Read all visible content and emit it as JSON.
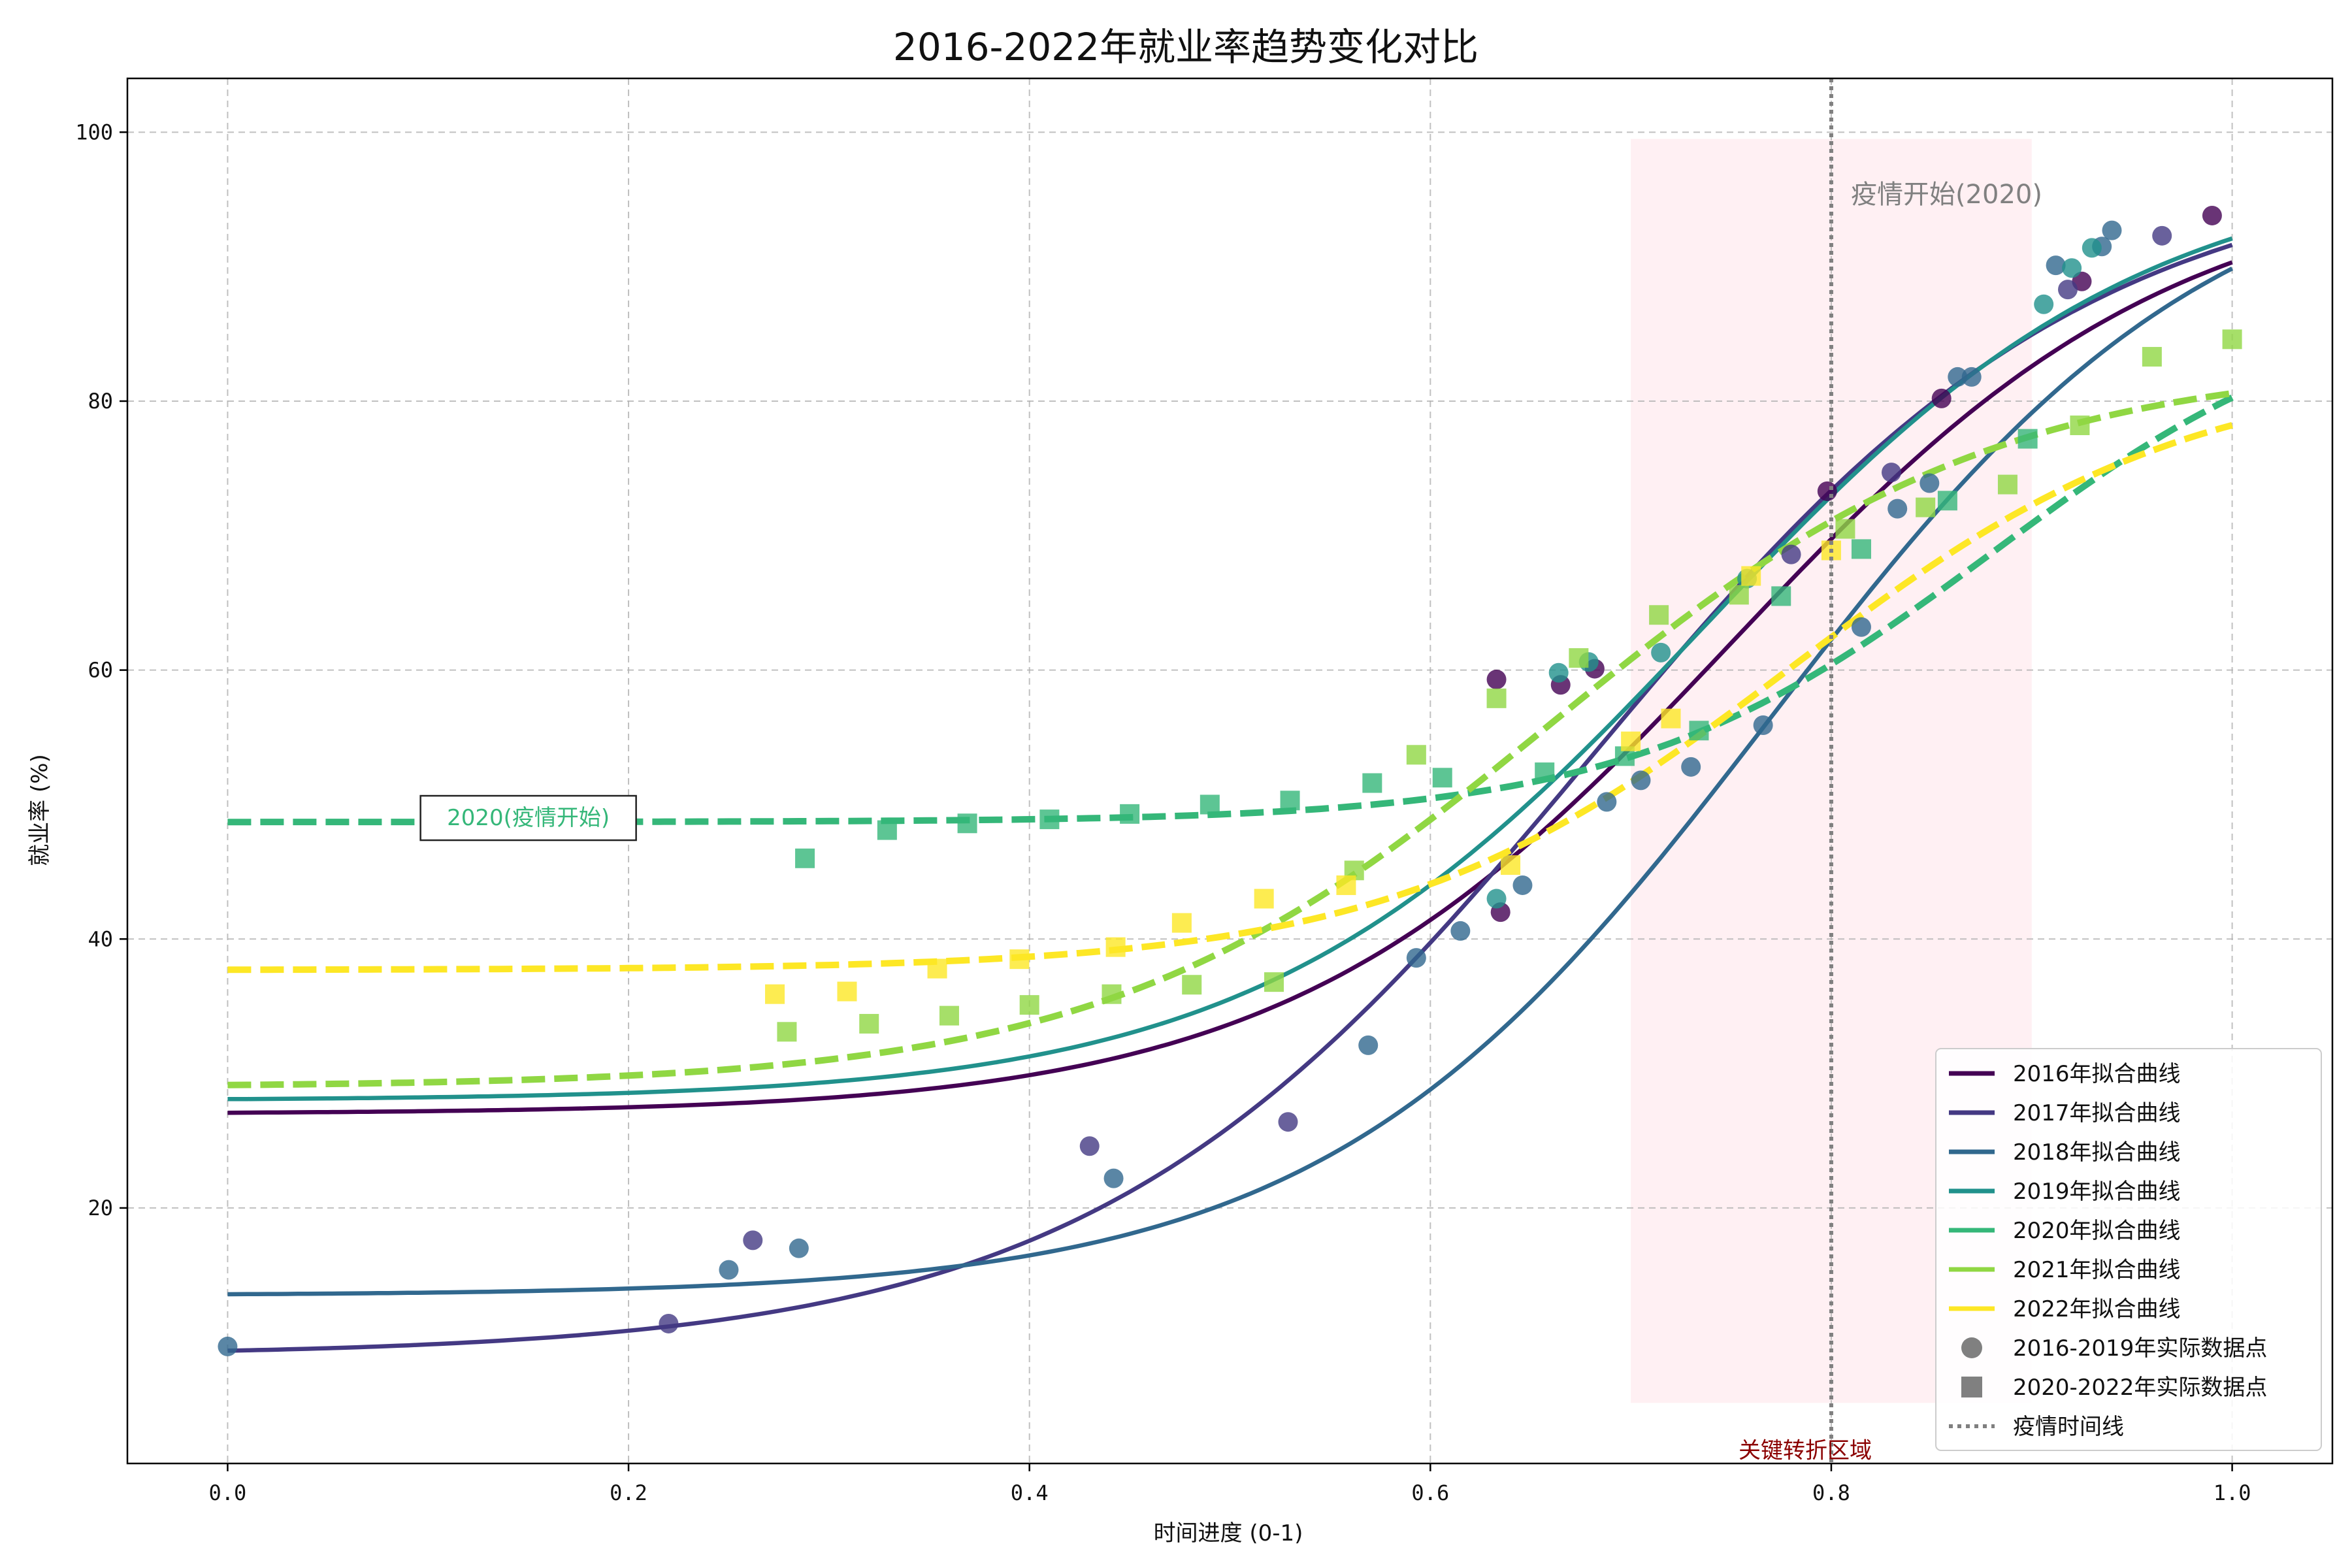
{
  "chart_data": {
    "type": "line",
    "title": "2016-2022年就业率趋势变化对比",
    "xlabel": "时间进度 (0-1)",
    "ylabel": "就业率 (%)",
    "xlim": [
      -0.05,
      1.05
    ],
    "ylim": [
      1,
      104
    ],
    "x_ticks": [
      0.0,
      0.2,
      0.4,
      0.6,
      0.8,
      1.0
    ],
    "x_tick_labels": [
      "0.0",
      "0.2",
      "0.4",
      "0.6",
      "0.8",
      "1.0"
    ],
    "y_ticks": [
      20,
      40,
      60,
      80,
      100
    ],
    "y_tick_labels": [
      "20",
      "40",
      "60",
      "80",
      "100"
    ],
    "grid": true,
    "legend_position": "bottom-right",
    "colors": {
      "2016": "#440154",
      "2017": "#443983",
      "2018": "#31688e",
      "2019": "#21918c",
      "2020": "#35b779",
      "2021": "#90d743",
      "2022": "#fde725",
      "vline": "#808080",
      "highlight": "#ffb6c1",
      "highlight_label": "#8b0000"
    },
    "fit_curves": [
      {
        "name": "2016年拟合曲线",
        "year": "2016",
        "dashed": false,
        "base": 27.0,
        "amp": 70.0,
        "k": 9.0,
        "x0": 0.75
      },
      {
        "name": "2017年拟合曲线",
        "year": "2017",
        "dashed": false,
        "base": 9.0,
        "amp": 89.0,
        "k": 8.0,
        "x0": 0.68
      },
      {
        "name": "2018年拟合曲线",
        "year": "2018",
        "dashed": false,
        "base": 13.5,
        "amp": 86.0,
        "k": 9.0,
        "x0": 0.77
      },
      {
        "name": "2019年拟合曲线",
        "year": "2019",
        "dashed": false,
        "base": 28.0,
        "amp": 70.0,
        "k": 9.0,
        "x0": 0.735
      },
      {
        "name": "2020年拟合曲线",
        "year": "2020",
        "dashed": true,
        "base": 48.7,
        "amp": 40.0,
        "k": 11.0,
        "x0": 0.88
      },
      {
        "name": "2021年拟合曲线",
        "year": "2021",
        "dashed": true,
        "base": 29.0,
        "amp": 54.0,
        "k": 9.0,
        "x0": 0.66
      },
      {
        "name": "2022年拟合曲线",
        "year": "2022",
        "dashed": true,
        "base": 37.7,
        "amp": 45.0,
        "k": 10.0,
        "x0": 0.78
      }
    ],
    "points_2016_2019": [
      {
        "year": "2016",
        "x": 0.633,
        "y": 59.3
      },
      {
        "year": "2016",
        "x": 0.665,
        "y": 58.9
      },
      {
        "year": "2016",
        "x": 0.682,
        "y": 60.1
      },
      {
        "year": "2016",
        "x": 0.635,
        "y": 42.0
      },
      {
        "year": "2016",
        "x": 0.798,
        "y": 73.3
      },
      {
        "year": "2016",
        "x": 0.855,
        "y": 80.2
      },
      {
        "year": "2016",
        "x": 0.925,
        "y": 88.9
      },
      {
        "year": "2016",
        "x": 0.99,
        "y": 93.8
      },
      {
        "year": "2017",
        "x": 0.22,
        "y": 11.4
      },
      {
        "year": "2017",
        "x": 0.262,
        "y": 17.6
      },
      {
        "year": "2017",
        "x": 0.43,
        "y": 24.6
      },
      {
        "year": "2017",
        "x": 0.529,
        "y": 26.4
      },
      {
        "year": "2017",
        "x": 0.78,
        "y": 68.6
      },
      {
        "year": "2017",
        "x": 0.83,
        "y": 74.7
      },
      {
        "year": "2017",
        "x": 0.918,
        "y": 88.3
      },
      {
        "year": "2017",
        "x": 0.965,
        "y": 92.3
      },
      {
        "year": "2018",
        "x": 0.0,
        "y": 9.7
      },
      {
        "year": "2018",
        "x": 0.25,
        "y": 15.4
      },
      {
        "year": "2018",
        "x": 0.285,
        "y": 17.0
      },
      {
        "year": "2018",
        "x": 0.442,
        "y": 22.2
      },
      {
        "year": "2018",
        "x": 0.569,
        "y": 32.1
      },
      {
        "year": "2018",
        "x": 0.593,
        "y": 38.6
      },
      {
        "year": "2018",
        "x": 0.615,
        "y": 40.6
      },
      {
        "year": "2018",
        "x": 0.646,
        "y": 44.0
      },
      {
        "year": "2018",
        "x": 0.688,
        "y": 50.2
      },
      {
        "year": "2018",
        "x": 0.705,
        "y": 51.8
      },
      {
        "year": "2018",
        "x": 0.73,
        "y": 52.8
      },
      {
        "year": "2018",
        "x": 0.766,
        "y": 55.9
      },
      {
        "year": "2018",
        "x": 0.815,
        "y": 63.2
      },
      {
        "year": "2018",
        "x": 0.833,
        "y": 72.0
      },
      {
        "year": "2018",
        "x": 0.849,
        "y": 73.9
      },
      {
        "year": "2018",
        "x": 0.863,
        "y": 81.8
      },
      {
        "year": "2018",
        "x": 0.87,
        "y": 81.8
      },
      {
        "year": "2018",
        "x": 0.912,
        "y": 90.1
      },
      {
        "year": "2018",
        "x": 0.94,
        "y": 92.7
      },
      {
        "year": "2018",
        "x": 0.935,
        "y": 91.5
      },
      {
        "year": "2019",
        "x": 0.633,
        "y": 43.0
      },
      {
        "year": "2019",
        "x": 0.664,
        "y": 59.8
      },
      {
        "year": "2019",
        "x": 0.679,
        "y": 60.6
      },
      {
        "year": "2019",
        "x": 0.715,
        "y": 61.3
      },
      {
        "year": "2019",
        "x": 0.758,
        "y": 66.8
      },
      {
        "year": "2019",
        "x": 0.906,
        "y": 87.2
      },
      {
        "year": "2019",
        "x": 0.92,
        "y": 89.9
      },
      {
        "year": "2019",
        "x": 0.93,
        "y": 91.4
      }
    ],
    "points_2020_2022": [
      {
        "year": "2020",
        "x": 0.288,
        "y": 46.0
      },
      {
        "year": "2020",
        "x": 0.329,
        "y": 48.1
      },
      {
        "year": "2020",
        "x": 0.369,
        "y": 48.6
      },
      {
        "year": "2020",
        "x": 0.41,
        "y": 48.9
      },
      {
        "year": "2020",
        "x": 0.45,
        "y": 49.3
      },
      {
        "year": "2020",
        "x": 0.49,
        "y": 50.0
      },
      {
        "year": "2020",
        "x": 0.53,
        "y": 50.3
      },
      {
        "year": "2020",
        "x": 0.571,
        "y": 51.6
      },
      {
        "year": "2020",
        "x": 0.606,
        "y": 52.0
      },
      {
        "year": "2020",
        "x": 0.657,
        "y": 52.4
      },
      {
        "year": "2020",
        "x": 0.697,
        "y": 53.6
      },
      {
        "year": "2020",
        "x": 0.734,
        "y": 55.5
      },
      {
        "year": "2020",
        "x": 0.775,
        "y": 65.5
      },
      {
        "year": "2020",
        "x": 0.815,
        "y": 69.0
      },
      {
        "year": "2020",
        "x": 0.858,
        "y": 72.6
      },
      {
        "year": "2020",
        "x": 0.898,
        "y": 77.2
      },
      {
        "year": "2021",
        "x": 0.279,
        "y": 33.1
      },
      {
        "year": "2021",
        "x": 0.32,
        "y": 33.7
      },
      {
        "year": "2021",
        "x": 0.36,
        "y": 34.3
      },
      {
        "year": "2021",
        "x": 0.4,
        "y": 35.1
      },
      {
        "year": "2021",
        "x": 0.441,
        "y": 35.9
      },
      {
        "year": "2021",
        "x": 0.481,
        "y": 36.6
      },
      {
        "year": "2021",
        "x": 0.522,
        "y": 36.8
      },
      {
        "year": "2021",
        "x": 0.562,
        "y": 45.1
      },
      {
        "year": "2021",
        "x": 0.593,
        "y": 53.7
      },
      {
        "year": "2021",
        "x": 0.633,
        "y": 57.9
      },
      {
        "year": "2021",
        "x": 0.674,
        "y": 60.9
      },
      {
        "year": "2021",
        "x": 0.714,
        "y": 64.1
      },
      {
        "year": "2021",
        "x": 0.754,
        "y": 65.6
      },
      {
        "year": "2021",
        "x": 0.807,
        "y": 70.5
      },
      {
        "year": "2021",
        "x": 0.847,
        "y": 72.1
      },
      {
        "year": "2021",
        "x": 0.888,
        "y": 73.8
      },
      {
        "year": "2021",
        "x": 0.924,
        "y": 78.2
      },
      {
        "year": "2021",
        "x": 0.96,
        "y": 83.3
      },
      {
        "year": "2021",
        "x": 1.0,
        "y": 84.6
      },
      {
        "year": "2022",
        "x": 0.273,
        "y": 35.9
      },
      {
        "year": "2022",
        "x": 0.309,
        "y": 36.1
      },
      {
        "year": "2022",
        "x": 0.354,
        "y": 37.8
      },
      {
        "year": "2022",
        "x": 0.395,
        "y": 38.5
      },
      {
        "year": "2022",
        "x": 0.443,
        "y": 39.4
      },
      {
        "year": "2022",
        "x": 0.476,
        "y": 41.2
      },
      {
        "year": "2022",
        "x": 0.517,
        "y": 43.0
      },
      {
        "year": "2022",
        "x": 0.558,
        "y": 44.0
      },
      {
        "year": "2022",
        "x": 0.64,
        "y": 45.5
      },
      {
        "year": "2022",
        "x": 0.7,
        "y": 54.7
      },
      {
        "year": "2022",
        "x": 0.72,
        "y": 56.4
      },
      {
        "year": "2022",
        "x": 0.76,
        "y": 67.0
      },
      {
        "year": "2022",
        "x": 0.8,
        "y": 68.9
      }
    ],
    "highlight_region": {
      "x_start": 0.7,
      "x_end": 0.9,
      "y_start": 5.5,
      "y_end": 99.5,
      "label": "关键转折区域"
    },
    "vline": {
      "x": 0.8,
      "label": "疫情开始(2020)"
    },
    "boxed_annotation": {
      "text": "2020(疫情开始)",
      "x": 0.15,
      "y": 49.0
    },
    "legend": [
      {
        "label": "2016年拟合曲线",
        "kind": "line",
        "year": "2016"
      },
      {
        "label": "2017年拟合曲线",
        "kind": "line",
        "year": "2017"
      },
      {
        "label": "2018年拟合曲线",
        "kind": "line",
        "year": "2018"
      },
      {
        "label": "2019年拟合曲线",
        "kind": "line",
        "year": "2019"
      },
      {
        "label": "2020年拟合曲线",
        "kind": "line",
        "year": "2020"
      },
      {
        "label": "2021年拟合曲线",
        "kind": "line",
        "year": "2021"
      },
      {
        "label": "2022年拟合曲线",
        "kind": "line",
        "year": "2022"
      },
      {
        "label": "2016-2019年实际数据点",
        "kind": "circle"
      },
      {
        "label": "2020-2022年实际数据点",
        "kind": "square"
      },
      {
        "label": "疫情时间线",
        "kind": "dotted"
      }
    ]
  }
}
